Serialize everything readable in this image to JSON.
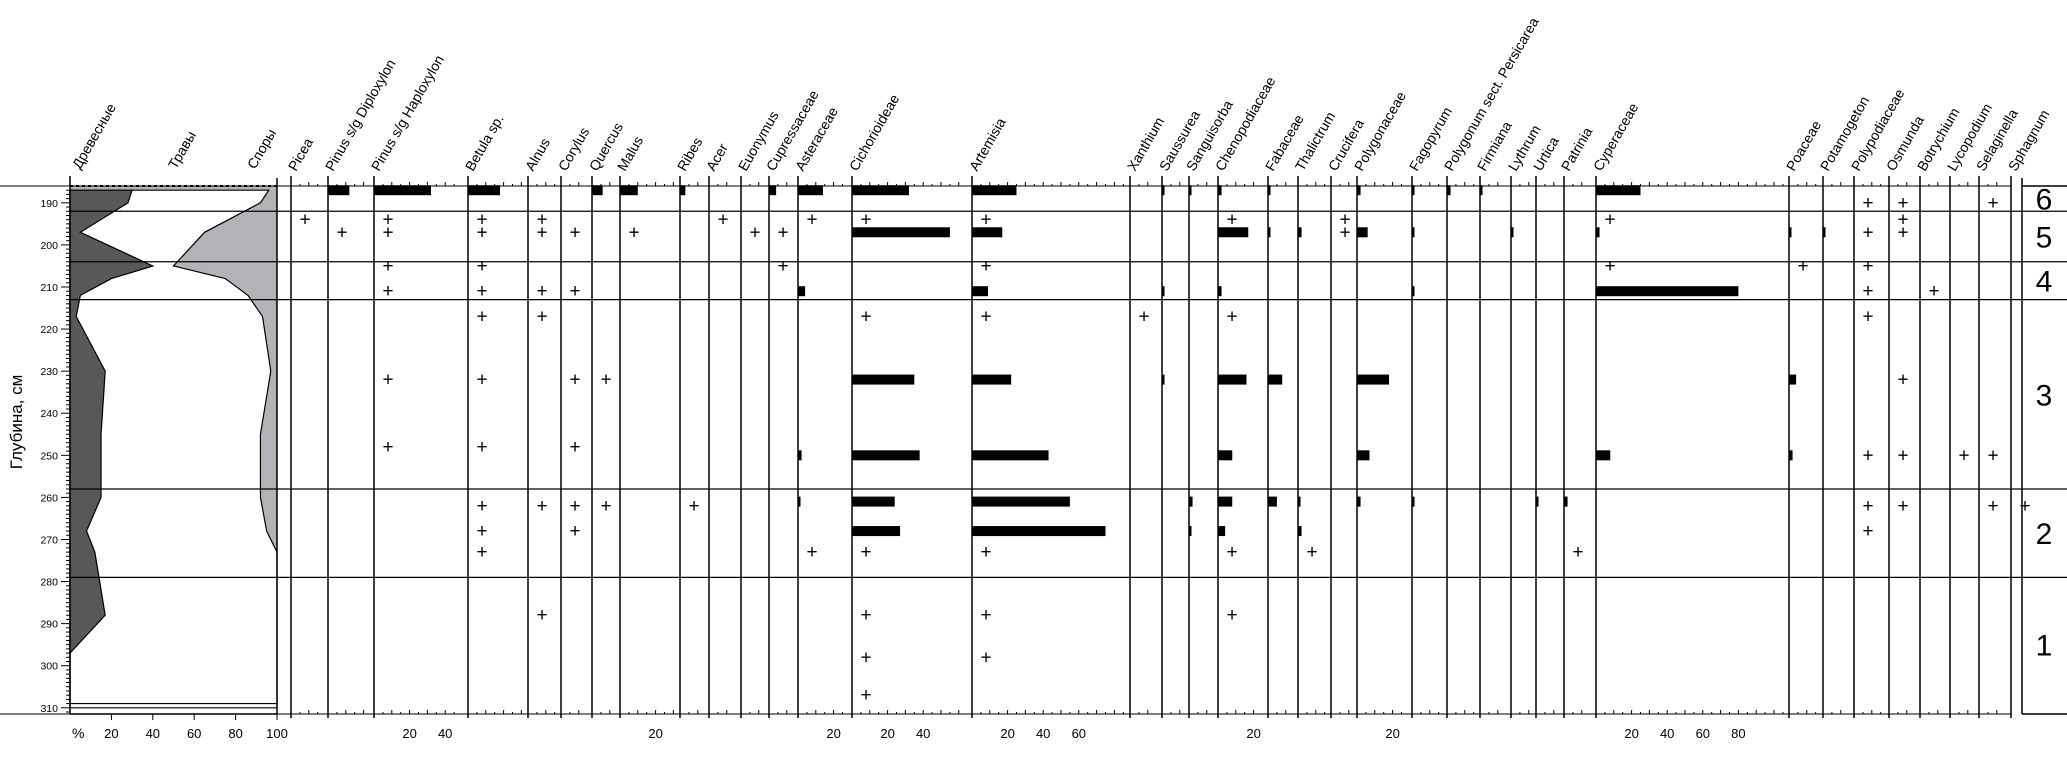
{
  "chart_data": {
    "type": "pollen_diagram",
    "ylabel": "Глубина, см",
    "yticks": [
      190,
      200,
      210,
      220,
      230,
      240,
      250,
      260,
      270,
      280,
      290,
      300,
      310
    ],
    "ylim": [
      186,
      311
    ],
    "zone_boundaries": [
      192,
      204,
      213,
      258,
      279
    ],
    "zones": [
      {
        "label": "6",
        "top": 186,
        "bottom": 192
      },
      {
        "label": "5",
        "top": 192,
        "bottom": 204
      },
      {
        "label": "4",
        "top": 204,
        "bottom": 213
      },
      {
        "label": "3",
        "top": 213,
        "bottom": 258
      },
      {
        "label": "2",
        "top": 258,
        "bottom": 279
      },
      {
        "label": "1",
        "top": 279,
        "bottom": 311
      }
    ],
    "summary": {
      "labels": [
        "Древесные",
        "Травы",
        "Споры"
      ],
      "xlabel": "%",
      "xticks": [
        20,
        40,
        60,
        80,
        100
      ],
      "colors": {
        "trees": "#58585a",
        "herbs": "#ffffff",
        "spores": "#b1b3b6"
      },
      "depths": [
        187,
        190,
        197,
        205,
        208,
        212,
        217,
        230,
        245,
        260,
        268,
        273,
        288,
        297,
        310
      ],
      "trees": [
        30,
        28,
        5,
        40,
        20,
        5,
        3,
        17,
        15,
        15,
        8,
        12,
        17,
        0,
        0
      ],
      "herbs_cum": [
        96,
        92,
        65,
        50,
        75,
        86,
        93,
        97,
        92,
        92,
        95,
        100,
        100,
        100,
        100
      ]
    },
    "taxa": [
      {
        "name": "Picea",
        "samples": [
          {
            "depth": 194,
            "value": "+"
          }
        ]
      },
      {
        "name": "Pinus s/g Diploxylon",
        "samples": [
          {
            "depth": 187,
            "value": 12
          },
          {
            "depth": 197,
            "value": "+"
          }
        ]
      },
      {
        "name": "Pinus s/g Haploxylon",
        "xticks": [
          20,
          40
        ],
        "samples": [
          {
            "depth": 187,
            "value": 32
          },
          {
            "depth": 194,
            "value": "+"
          },
          {
            "depth": 197,
            "value": "+"
          },
          {
            "depth": 205,
            "value": "+"
          },
          {
            "depth": 211,
            "value": "+"
          },
          {
            "depth": 232,
            "value": "+"
          },
          {
            "depth": 248,
            "value": "+"
          }
        ]
      },
      {
        "name": "Betula sp.",
        "samples": [
          {
            "depth": 187,
            "value": 18
          },
          {
            "depth": 194,
            "value": "+"
          },
          {
            "depth": 197,
            "value": "+"
          },
          {
            "depth": 205,
            "value": "+"
          },
          {
            "depth": 211,
            "value": "+"
          },
          {
            "depth": 217,
            "value": "+"
          },
          {
            "depth": 232,
            "value": "+"
          },
          {
            "depth": 248,
            "value": "+"
          },
          {
            "depth": 262,
            "value": "+"
          },
          {
            "depth": 268,
            "value": "+"
          },
          {
            "depth": 273,
            "value": "+"
          }
        ]
      },
      {
        "name": "Alnus",
        "samples": [
          {
            "depth": 194,
            "value": "+"
          },
          {
            "depth": 197,
            "value": "+"
          },
          {
            "depth": 211,
            "value": "+"
          },
          {
            "depth": 217,
            "value": "+"
          },
          {
            "depth": 262,
            "value": "+"
          },
          {
            "depth": 288,
            "value": "+"
          }
        ]
      },
      {
        "name": "Corylus",
        "samples": [
          {
            "depth": 197,
            "value": "+"
          },
          {
            "depth": 211,
            "value": "+"
          },
          {
            "depth": 232,
            "value": "+"
          },
          {
            "depth": 248,
            "value": "+"
          },
          {
            "depth": 262,
            "value": "+"
          },
          {
            "depth": 268,
            "value": "+"
          }
        ]
      },
      {
        "name": "Quercus",
        "samples": [
          {
            "depth": 187,
            "value": 6
          },
          {
            "depth": 232,
            "value": "+"
          },
          {
            "depth": 262,
            "value": "+"
          }
        ]
      },
      {
        "name": "Malus",
        "xticks": [
          20
        ],
        "samples": [
          {
            "depth": 187,
            "value": 10
          },
          {
            "depth": 197,
            "value": "+"
          }
        ]
      },
      {
        "name": "Ribes",
        "samples": [
          {
            "depth": 187,
            "value": 3
          },
          {
            "depth": 262,
            "value": "+"
          }
        ]
      },
      {
        "name": "Acer",
        "samples": [
          {
            "depth": 194,
            "value": "+"
          }
        ]
      },
      {
        "name": "Euonymus",
        "samples": [
          {
            "depth": 197,
            "value": "+"
          }
        ]
      },
      {
        "name": "Cupressaceae",
        "samples": [
          {
            "depth": 187,
            "value": 4
          },
          {
            "depth": 197,
            "value": "+"
          },
          {
            "depth": 205,
            "value": "+"
          }
        ]
      },
      {
        "name": "Asteraceae",
        "xticks": [
          20
        ],
        "samples": [
          {
            "depth": 187,
            "value": 14
          },
          {
            "depth": 194,
            "value": "+"
          },
          {
            "depth": 211,
            "value": 4
          },
          {
            "depth": 250,
            "value": 2
          },
          {
            "depth": 261,
            "value": 1
          },
          {
            "depth": 273,
            "value": "+"
          }
        ]
      },
      {
        "name": "Cichorioideae",
        "xticks": [
          20,
          40
        ],
        "samples": [
          {
            "depth": 187,
            "value": 32
          },
          {
            "depth": 194,
            "value": "+"
          },
          {
            "depth": 197,
            "value": 55
          },
          {
            "depth": 217,
            "value": "+"
          },
          {
            "depth": 232,
            "value": 35
          },
          {
            "depth": 250,
            "value": 38
          },
          {
            "depth": 261,
            "value": 24
          },
          {
            "depth": 268,
            "value": 27
          },
          {
            "depth": 273,
            "value": "+"
          },
          {
            "depth": 288,
            "value": "+"
          },
          {
            "depth": 298,
            "value": "+"
          },
          {
            "depth": 307,
            "value": "+"
          }
        ]
      },
      {
        "name": "Artemisia",
        "xticks": [
          20,
          40,
          60
        ],
        "samples": [
          {
            "depth": 187,
            "value": 25
          },
          {
            "depth": 194,
            "value": "+"
          },
          {
            "depth": 197,
            "value": 17
          },
          {
            "depth": 205,
            "value": "+"
          },
          {
            "depth": 211,
            "value": 9
          },
          {
            "depth": 217,
            "value": "+"
          },
          {
            "depth": 232,
            "value": 22
          },
          {
            "depth": 250,
            "value": 43
          },
          {
            "depth": 261,
            "value": 55
          },
          {
            "depth": 268,
            "value": 75
          },
          {
            "depth": 273,
            "value": "+"
          },
          {
            "depth": 288,
            "value": "+"
          },
          {
            "depth": 298,
            "value": "+"
          }
        ]
      },
      {
        "name": "Xanthium",
        "samples": [
          {
            "depth": 217,
            "value": "+"
          }
        ]
      },
      {
        "name": "Saussurea",
        "samples": [
          {
            "depth": 187,
            "value": 1
          },
          {
            "depth": 211,
            "value": 1
          },
          {
            "depth": 232,
            "value": 1
          }
        ]
      },
      {
        "name": "Sanguisorba",
        "samples": [
          {
            "depth": 187,
            "value": 1
          },
          {
            "depth": 261,
            "value": 2
          },
          {
            "depth": 268,
            "value": 1
          }
        ]
      },
      {
        "name": "Chenopodiaceae",
        "xticks": [
          20
        ],
        "samples": [
          {
            "depth": 187,
            "value": 2
          },
          {
            "depth": 194,
            "value": "+"
          },
          {
            "depth": 197,
            "value": 17
          },
          {
            "depth": 211,
            "value": 2
          },
          {
            "depth": 217,
            "value": "+"
          },
          {
            "depth": 232,
            "value": 16
          },
          {
            "depth": 250,
            "value": 8
          },
          {
            "depth": 261,
            "value": 8
          },
          {
            "depth": 268,
            "value": 4
          },
          {
            "depth": 273,
            "value": "+"
          },
          {
            "depth": 288,
            "value": "+"
          }
        ]
      },
      {
        "name": "Fabaceae",
        "samples": [
          {
            "depth": 187,
            "value": 1
          },
          {
            "depth": 197,
            "value": 1
          },
          {
            "depth": 232,
            "value": 8
          },
          {
            "depth": 261,
            "value": 5
          }
        ]
      },
      {
        "name": "Thalictrum",
        "samples": [
          {
            "depth": 197,
            "value": 2
          },
          {
            "depth": 261,
            "value": 1
          },
          {
            "depth": 268,
            "value": 2
          },
          {
            "depth": 273,
            "value": "+"
          }
        ]
      },
      {
        "name": "Crucifera",
        "samples": [
          {
            "depth": 194,
            "value": "+"
          },
          {
            "depth": 197,
            "value": "+"
          }
        ]
      },
      {
        "name": "Polygonaceae",
        "xticks": [
          20
        ],
        "samples": [
          {
            "depth": 187,
            "value": 2
          },
          {
            "depth": 197,
            "value": 6
          },
          {
            "depth": 232,
            "value": 18
          },
          {
            "depth": 250,
            "value": 7
          },
          {
            "depth": 261,
            "value": 2
          }
        ]
      },
      {
        "name": "Fagopyrum",
        "samples": [
          {
            "depth": 187,
            "value": 1
          },
          {
            "depth": 197,
            "value": 1
          },
          {
            "depth": 211,
            "value": 1
          },
          {
            "depth": 261,
            "value": 1
          }
        ]
      },
      {
        "name": "Polygonum sect. Persicarea",
        "samples": [
          {
            "depth": 187,
            "value": 2
          }
        ]
      },
      {
        "name": "Firmiana",
        "samples": [
          {
            "depth": 187,
            "value": 1
          }
        ]
      },
      {
        "name": "Lythrum",
        "samples": [
          {
            "depth": 197,
            "value": 1
          }
        ]
      },
      {
        "name": "Urtica",
        "samples": [
          {
            "depth": 261,
            "value": 1
          }
        ]
      },
      {
        "name": "Patrinia",
        "samples": [
          {
            "depth": 261,
            "value": 2
          },
          {
            "depth": 273,
            "value": "+"
          }
        ]
      },
      {
        "name": "Cyperaceae",
        "xticks": [
          20,
          40,
          60,
          80
        ],
        "samples": [
          {
            "depth": 187,
            "value": 25
          },
          {
            "depth": 194,
            "value": "+"
          },
          {
            "depth": 197,
            "value": 2
          },
          {
            "depth": 205,
            "value": "+"
          },
          {
            "depth": 211,
            "value": 80
          },
          {
            "depth": 250,
            "value": 8
          }
        ]
      },
      {
        "name": "Poaceae",
        "samples": [
          {
            "depth": 197,
            "value": 1
          },
          {
            "depth": 205,
            "value": "+"
          },
          {
            "depth": 232,
            "value": 4
          },
          {
            "depth": 250,
            "value": 2
          }
        ]
      },
      {
        "name": "Potamogeton",
        "samples": [
          {
            "depth": 197,
            "value": 1
          }
        ]
      },
      {
        "name": "Polypodiaceae",
        "samples": [
          {
            "depth": 190,
            "value": "+"
          },
          {
            "depth": 197,
            "value": "+"
          },
          {
            "depth": 205,
            "value": "+"
          },
          {
            "depth": 211,
            "value": "+"
          },
          {
            "depth": 217,
            "value": "+"
          },
          {
            "depth": 250,
            "value": "+"
          },
          {
            "depth": 262,
            "value": "+"
          },
          {
            "depth": 268,
            "value": "+"
          }
        ]
      },
      {
        "name": "Osmunda",
        "samples": [
          {
            "depth": 190,
            "value": "+"
          },
          {
            "depth": 194,
            "value": "+"
          },
          {
            "depth": 197,
            "value": "+"
          },
          {
            "depth": 232,
            "value": "+"
          },
          {
            "depth": 250,
            "value": "+"
          },
          {
            "depth": 262,
            "value": "+"
          }
        ]
      },
      {
        "name": "Botrychium",
        "samples": [
          {
            "depth": 211,
            "value": "+"
          }
        ]
      },
      {
        "name": "Lycopodium",
        "samples": [
          {
            "depth": 250,
            "value": "+"
          }
        ]
      },
      {
        "name": "Selaginella",
        "samples": [
          {
            "depth": 190,
            "value": "+"
          },
          {
            "depth": 250,
            "value": "+"
          },
          {
            "depth": 262,
            "value": "+"
          }
        ]
      },
      {
        "name": "Sphagnum",
        "samples": [
          {
            "depth": 262,
            "value": "+"
          }
        ]
      }
    ]
  }
}
